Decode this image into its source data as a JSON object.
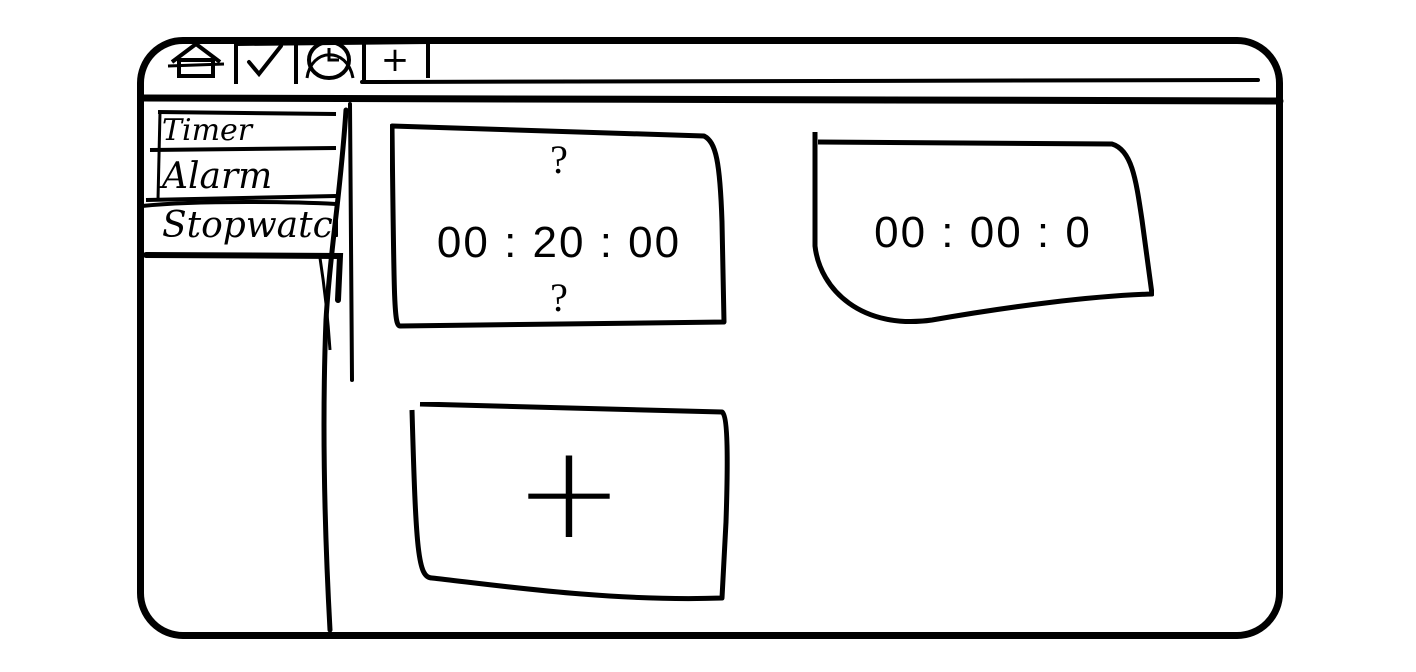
{
  "toolbar": {
    "tabs": [
      {
        "id": "home",
        "icon": "home-icon"
      },
      {
        "id": "check",
        "icon": "check-icon"
      },
      {
        "id": "clock",
        "icon": "clock-icon"
      },
      {
        "id": "add",
        "icon": "plus-icon",
        "label": "+"
      }
    ]
  },
  "sidebar": {
    "items": [
      {
        "label": "Timer"
      },
      {
        "label": "Alarm"
      },
      {
        "label": "Stopwatch"
      }
    ]
  },
  "cards": {
    "timer": {
      "top_mark": "?",
      "time": "00 : 20 : 00",
      "bottom_mark": "?"
    },
    "alarm": {
      "time": "00 : 00 : 0"
    },
    "add": {
      "label": "+"
    }
  }
}
